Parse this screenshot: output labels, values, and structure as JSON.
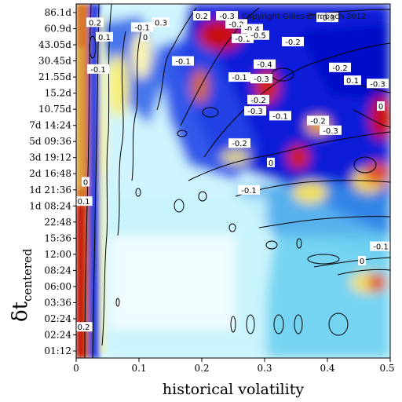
{
  "chart_data": {
    "type": "heatmap",
    "title": "",
    "xlabel": "historical volatility",
    "ylabel": "δt",
    "ylabel_subscript": "centered",
    "xlim": [
      0,
      0.5
    ],
    "x_ticks": [
      "0",
      "0.1",
      "0.2",
      "0.3",
      "0.4",
      "0.5"
    ],
    "y_ticks": [
      "01:12",
      "02:24",
      "02:24",
      "03:36",
      "06:00",
      "08:24",
      "12:00",
      "15:36",
      "22:48",
      "1d 08:24",
      "1d 21:36",
      "2d 16:48",
      "3d 19:12",
      "5d 09:36",
      "7d 14:24",
      "10.75d",
      "15.2d",
      "21.55d",
      "30.45d",
      "43.05d",
      "60.9d",
      "86.1d"
    ],
    "copyright": "Copyright Gilles Zumbach 2012",
    "colors": {
      "negative_strong": "#0010d8",
      "negative_mid": "#2050e8",
      "negative_weak": "#7ad8f0",
      "zero": "#e8fbff",
      "positive_weak": "#f8f4a0",
      "positive_mid": "#e8a020",
      "positive_strong": "#c00000"
    },
    "contour_labels": [
      {
        "text": "0.2",
        "x": 0.012,
        "y": 1.5
      },
      {
        "text": "0.1",
        "x": 0.012,
        "y": 9.3
      },
      {
        "text": "0",
        "x": 0.015,
        "y": 10.5
      },
      {
        "text": "-0.1",
        "x": 0.035,
        "y": 17.5
      },
      {
        "text": "0.1",
        "x": 0.045,
        "y": 19.5
      },
      {
        "text": "0.2",
        "x": 0.03,
        "y": 20.4
      },
      {
        "text": "-0.1",
        "x": 0.105,
        "y": 20.1
      },
      {
        "text": "0.3",
        "x": 0.135,
        "y": 20.4
      },
      {
        "text": "0",
        "x": 0.11,
        "y": 19.5
      },
      {
        "text": "-0.1",
        "x": 0.17,
        "y": 18.0
      },
      {
        "text": "0.2",
        "x": 0.2,
        "y": 20.8
      },
      {
        "text": "-0.3",
        "x": 0.24,
        "y": 20.8
      },
      {
        "text": "-0.2",
        "x": 0.255,
        "y": 20.3
      },
      {
        "text": "-0.4",
        "x": 0.28,
        "y": 20.0
      },
      {
        "text": "-0.1",
        "x": 0.265,
        "y": 19.4
      },
      {
        "text": "-0.5",
        "x": 0.29,
        "y": 19.6
      },
      {
        "text": "-0.3",
        "x": 0.4,
        "y": 20.7
      },
      {
        "text": "-0.2",
        "x": 0.345,
        "y": 19.2
      },
      {
        "text": "-0.4",
        "x": 0.3,
        "y": 17.8
      },
      {
        "text": "-0.1",
        "x": 0.26,
        "y": 17.0
      },
      {
        "text": "-0.3",
        "x": 0.295,
        "y": 16.9
      },
      {
        "text": "-0.2",
        "x": 0.29,
        "y": 15.6
      },
      {
        "text": "-0.3",
        "x": 0.285,
        "y": 14.9
      },
      {
        "text": "-0.1",
        "x": 0.325,
        "y": 14.6
      },
      {
        "text": "-0.2",
        "x": 0.42,
        "y": 17.6
      },
      {
        "text": "0.1",
        "x": 0.44,
        "y": 16.8
      },
      {
        "text": "-0.3",
        "x": 0.48,
        "y": 16.6
      },
      {
        "text": "0",
        "x": 0.485,
        "y": 15.2
      },
      {
        "text": "-0.2",
        "x": 0.385,
        "y": 14.3
      },
      {
        "text": "-0.3",
        "x": 0.405,
        "y": 13.7
      },
      {
        "text": "-0.2",
        "x": 0.26,
        "y": 12.9
      },
      {
        "text": "0",
        "x": 0.31,
        "y": 11.7
      },
      {
        "text": "-0.1",
        "x": 0.275,
        "y": 10.0
      },
      {
        "text": "-0.1",
        "x": 0.485,
        "y": 6.5
      },
      {
        "text": "0",
        "x": 0.455,
        "y": 5.6
      }
    ]
  }
}
